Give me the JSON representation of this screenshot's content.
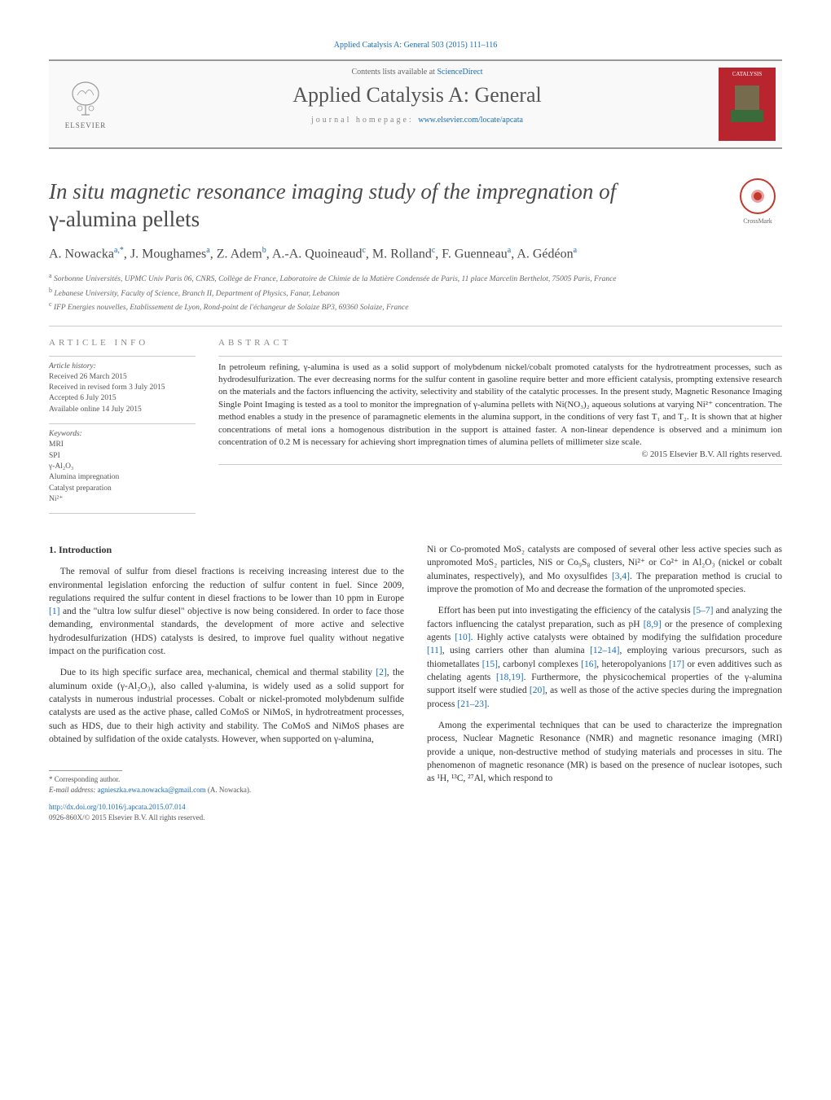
{
  "journal_ref": "Applied Catalysis A: General 503 (2015) 111–116",
  "header": {
    "publisher": "ELSEVIER",
    "contents_prefix": "Contents lists available at ",
    "contents_link": "ScienceDirect",
    "journal_name": "Applied Catalysis A: General",
    "homepage_prefix": "journal homepage: ",
    "homepage_url": "www.elsevier.com/locate/apcata",
    "cover_label": "CATALYSIS"
  },
  "title_line1": "In situ magnetic resonance imaging study of the impregnation of",
  "title_line2": "γ-alumina pellets",
  "crossmark_label": "CrossMark",
  "authors_html": "A. Nowacka<sup>a,*</sup>, J. Moughames<sup>a</sup>, Z. Adem<sup>b</sup>, A.-A. Quoineaud<sup>c</sup>, M. Rolland<sup>c</sup>, F. Guenneau<sup>a</sup>, A. Gédéon<sup>a</sup>",
  "affiliations": {
    "a": "Sorbonne Universités, UPMC Univ Paris 06, CNRS, Collège de France, Laboratoire de Chimie de la Matière Condensée de Paris, 11 place Marcelin Berthelot, 75005 Paris, France",
    "b": "Lebanese University, Faculty of Science, Branch II, Department of Physics, Fanar, Lebanon",
    "c": "IFP Energies nouvelles, Etablissement de Lyon, Rond-point de l'échangeur de Solaize BP3, 69360 Solaize, France"
  },
  "info_label": "article info",
  "abstract_label": "abstract",
  "history_label": "Article history:",
  "history": {
    "received": "Received 26 March 2015",
    "revised": "Received in revised form 3 July 2015",
    "accepted": "Accepted 6 July 2015",
    "online": "Available online 14 July 2015"
  },
  "keywords_label": "Keywords:",
  "keywords": [
    "MRI",
    "SPI",
    "γ-Al₂O₃",
    "Alumina impregnation",
    "Catalyst preparation",
    "Ni²⁺"
  ],
  "abstract": "In petroleum refining, γ-alumina is used as a solid support of molybdenum nickel/cobalt promoted catalysts for the hydrotreatment processes, such as hydrodesulfurization. The ever decreasing norms for the sulfur content in gasoline require better and more efficient catalysis, prompting extensive research on the materials and the factors influencing the activity, selectivity and stability of the catalytic processes. In the present study, Magnetic Resonance Imaging Single Point Imaging is tested as a tool to monitor the impregnation of γ-alumina pellets with Ni(NO₃)₂ aqueous solutions at varying Ni²⁺ concentration. The method enables a study in the presence of paramagnetic elements in the alumina support, in the conditions of very fast T₁ and T₂. It is shown that at higher concentrations of metal ions a homogenous distribution in the support is attained faster. A non-linear dependence is observed and a minimum ion concentration of 0.2 M is necessary for achieving short impregnation times of alumina pellets of millimeter size scale.",
  "copyright": "© 2015 Elsevier B.V. All rights reserved.",
  "intro_heading": "1. Introduction",
  "intro_p1": "The removal of sulfur from diesel fractions is receiving increasing interest due to the environmental legislation enforcing the reduction of sulfur content in fuel. Since 2009, regulations required the sulfur content in diesel fractions to be lower than 10 ppm in Europe [1] and the \"ultra low sulfur diesel\" objective is now being considered. In order to face those demanding, environmental standards, the development of more active and selective hydrodesulfurization (HDS) catalysts is desired, to improve fuel quality without negative impact on the purification cost.",
  "intro_p2": "Due to its high specific surface area, mechanical, chemical and thermal stability [2], the aluminum oxide (γ-Al₂O₃), also called γ-alumina, is widely used as a solid support for catalysts in numerous industrial processes. Cobalt or nickel-promoted molybdenum sulfide catalysts are used as the active phase, called CoMoS or NiMoS, in hydrotreatment processes, such as HDS, due to their high activity and stability. The CoMoS and NiMoS phases are obtained by sulfidation of the oxide catalysts. However, when supported on γ-alumina,",
  "col2_p1": "Ni or Co-promoted MoS₂ catalysts are composed of several other less active species such as unpromoted MoS₂ particles, NiS or Co₉S₈ clusters, Ni²⁺ or Co²⁺ in Al₂O₃ (nickel or cobalt aluminates, respectively), and Mo oxysulfides [3,4]. The preparation method is crucial to improve the promotion of Mo and decrease the formation of the unpromoted species.",
  "col2_p2": "Effort has been put into investigating the efficiency of the catalysis [5–7] and analyzing the factors influencing the catalyst preparation, such as pH [8,9] or the presence of complexing agents [10]. Highly active catalysts were obtained by modifying the sulfidation procedure [11], using carriers other than alumina [12–14], employing various precursors, such as thiometallates [15], carbonyl complexes [16], heteropolyanions [17] or even additives such as chelating agents [18,19]. Furthermore, the physicochemical properties of the γ-alumina support itself were studied [20], as well as those of the active species during the impregnation process [21–23].",
  "col2_p3": "Among the experimental techniques that can be used to characterize the impregnation process, Nuclear Magnetic Resonance (NMR) and magnetic resonance imaging (MRI) provide a unique, non-destructive method of studying materials and processes in situ. The phenomenon of magnetic resonance (MR) is based on the presence of nuclear isotopes, such as ¹H, ¹³C, ²⁷Al, which respond to",
  "corresponding_label": "* Corresponding author.",
  "email_label": "E-mail address:",
  "email": "agnieszka.ewa.nowacka@gmail.com",
  "email_author": "(A. Nowacka).",
  "doi": "http://dx.doi.org/10.1016/j.apcata.2015.07.014",
  "issn": "0926-860X/© 2015 Elsevier B.V. All rights reserved.",
  "colors": {
    "link": "#1a6db5",
    "text": "#333333",
    "muted": "#666666",
    "cover_bg": "#b8252f",
    "crossmark_ring": "#c0392b",
    "rule": "#cccccc"
  }
}
